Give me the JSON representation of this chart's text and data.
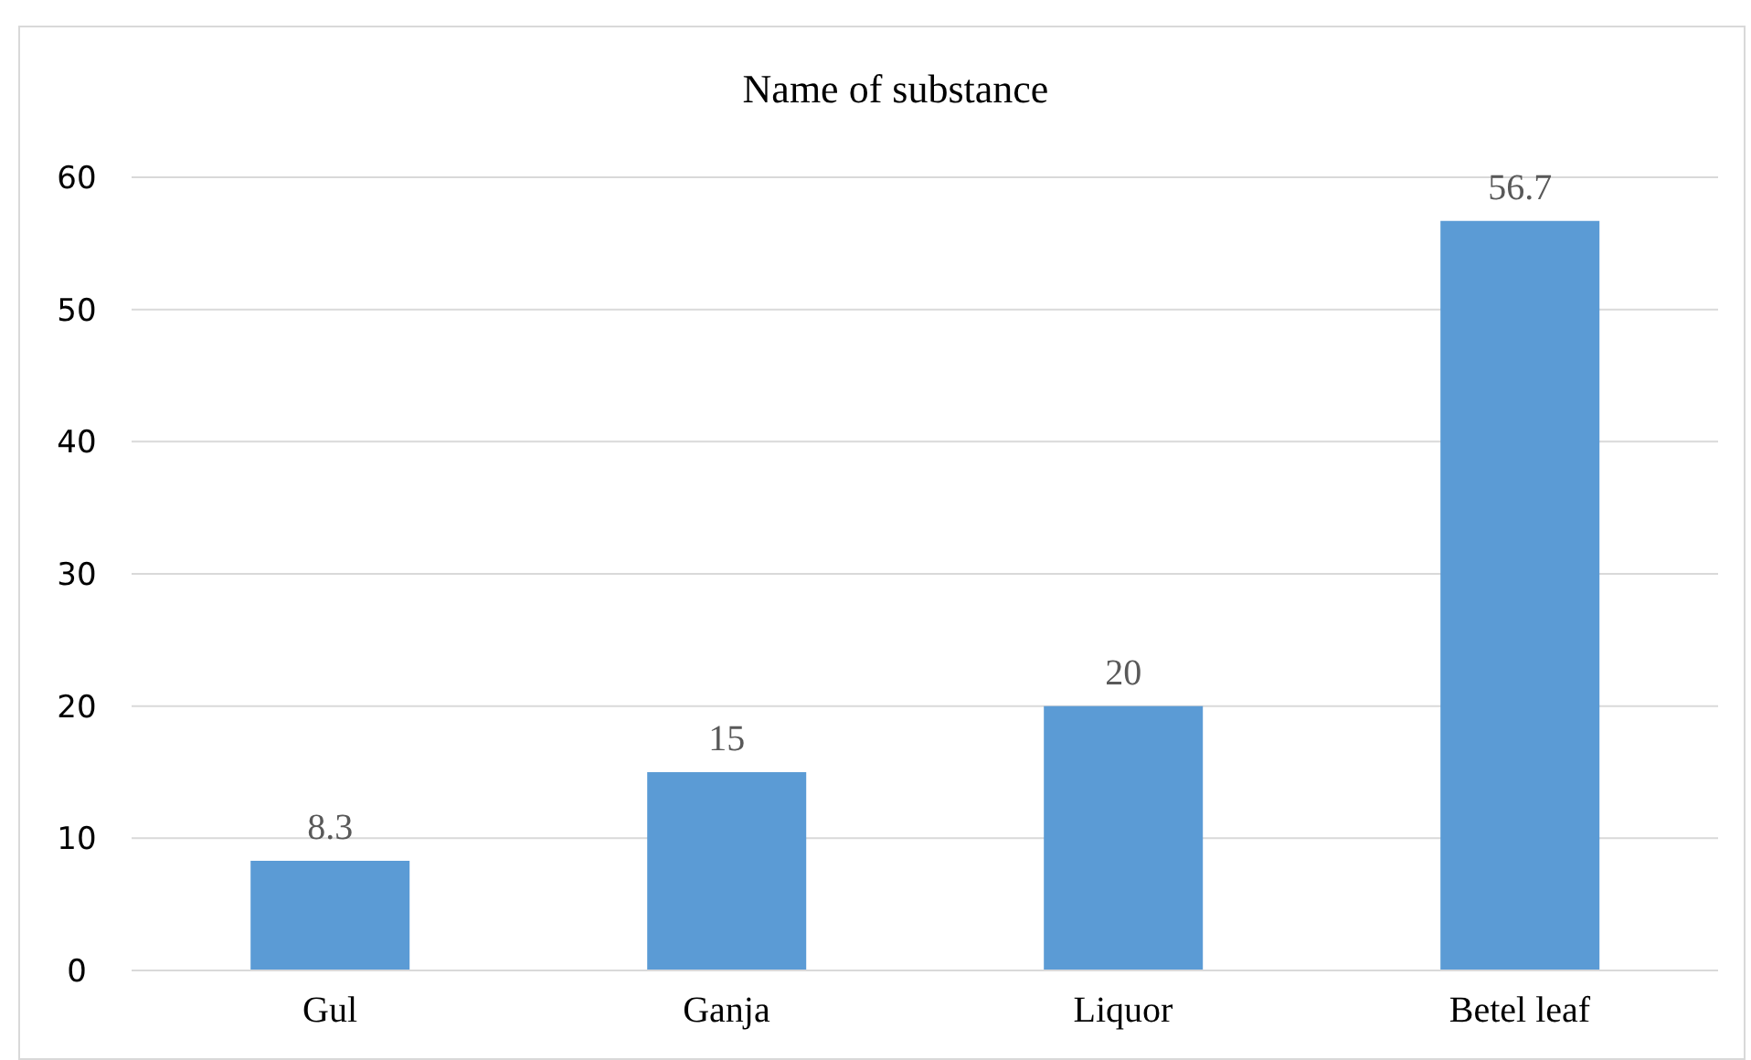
{
  "chart_data": {
    "type": "bar",
    "title": "Name of substance",
    "categories": [
      "Gul",
      "Ganja",
      "Liquor",
      "Betel leaf"
    ],
    "values": [
      8.3,
      15,
      20,
      56.7
    ],
    "color": "#5b9bd5",
    "ylim": [
      0,
      60
    ],
    "yticks": [
      0,
      10,
      20,
      30,
      40,
      50,
      60
    ],
    "grid": "y",
    "data_labels": true
  }
}
